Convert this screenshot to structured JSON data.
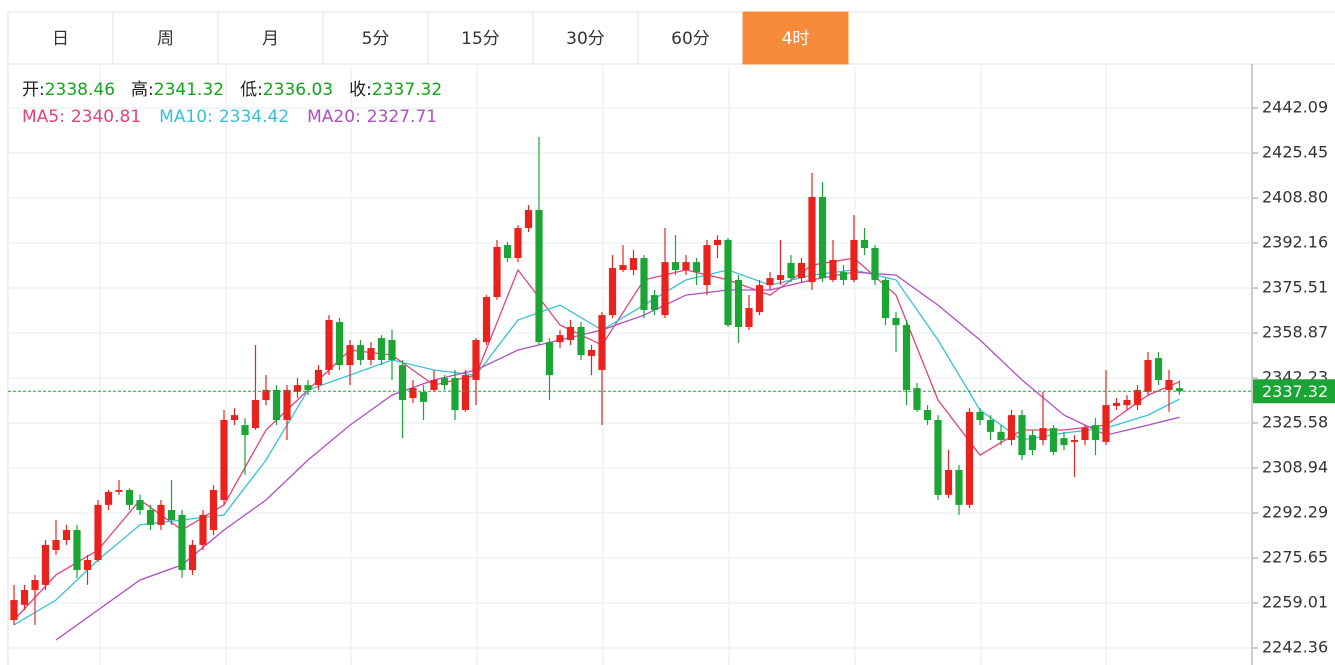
{
  "chart_data": {
    "type": "candlestick",
    "tabs": [
      "日",
      "周",
      "月",
      "5分",
      "15分",
      "30分",
      "60分",
      "4时"
    ],
    "active_tab": "4时",
    "ohlc_labels": [
      "开:",
      "高:",
      "低:",
      "收:"
    ],
    "up_color": "#e8231e",
    "down_color": "#1aa534",
    "ylim": [
      2236.07,
      2456.9
    ],
    "yticks": [
      2242.36,
      2259.01,
      2275.65,
      2292.29,
      2308.94,
      2325.58,
      2342.23,
      2358.87,
      2375.51,
      2392.16,
      {
        "value": 2408.8,
        "label": "2408.80"
      },
      2425.45,
      2442.09
    ],
    "grid": true,
    "ohlc": [
      [
        2252.7,
        2265.7,
        2250.9,
        2260.1
      ],
      [
        2258.3,
        2265.7,
        2256.4,
        2263.8
      ],
      [
        2263.8,
        2269.4,
        2250.9,
        2267.5
      ],
      [
        2265.7,
        2282.3,
        2263.8,
        2280.5
      ],
      [
        2278.6,
        2289.7,
        2276.8,
        2282.3
      ],
      [
        2282.3,
        2287.9,
        2280.5,
        2286.0
      ],
      [
        2286.0,
        2287.9,
        2268.3,
        2271.2
      ],
      [
        2271.2,
        2276.8,
        2265.7,
        2274.9
      ],
      [
        2274.9,
        2297.1,
        2274.2,
        2295.3
      ],
      [
        2295.3,
        2300.8,
        2293.4,
        2300.1
      ],
      [
        2300.1,
        2304.5,
        2299.0,
        2300.8
      ],
      [
        2300.8,
        2301.5,
        2293.4,
        2295.3
      ],
      [
        2297.1,
        2299.0,
        2291.6,
        2293.4
      ],
      [
        2293.4,
        2295.3,
        2286.0,
        2287.9
      ],
      [
        2287.9,
        2297.1,
        2286.0,
        2295.3
      ],
      [
        2293.4,
        2304.5,
        2287.9,
        2289.7
      ],
      [
        2291.6,
        2293.4,
        2268.3,
        2271.2
      ],
      [
        2271.2,
        2282.3,
        2269.4,
        2280.5
      ],
      [
        2280.5,
        2293.4,
        2278.6,
        2291.6
      ],
      [
        2286.0,
        2302.6,
        2284.1,
        2300.8
      ],
      [
        2297.1,
        2330.4,
        2295.3,
        2326.7
      ],
      [
        2326.7,
        2331.1,
        2324.8,
        2328.5
      ],
      [
        2324.8,
        2327.4,
        2306.4,
        2321.1
      ],
      [
        2323.7,
        2354.4,
        2323.0,
        2334.1
      ],
      [
        2334.1,
        2343.3,
        2332.2,
        2337.8
      ],
      [
        2337.8,
        2339.6,
        2324.8,
        2326.7
      ],
      [
        2326.7,
        2339.6,
        2319.3,
        2337.8
      ],
      [
        2337.1,
        2342.2,
        2334.8,
        2339.6
      ],
      [
        2339.6,
        2341.5,
        2335.9,
        2337.8
      ],
      [
        2339.6,
        2347.0,
        2337.8,
        2345.2
      ],
      [
        2345.2,
        2365.5,
        2343.3,
        2363.7
      ],
      [
        2362.9,
        2364.4,
        2345.2,
        2347.0
      ],
      [
        2347.0,
        2356.3,
        2339.6,
        2354.4
      ],
      [
        2354.4,
        2356.3,
        2347.0,
        2348.9
      ],
      [
        2348.9,
        2355.5,
        2347.0,
        2353.3
      ],
      [
        2357.0,
        2358.1,
        2347.0,
        2348.9
      ],
      [
        2356.3,
        2360.0,
        2341.5,
        2348.9
      ],
      [
        2347.0,
        2348.9,
        2320.0,
        2334.1
      ],
      [
        2334.8,
        2341.5,
        2333.0,
        2338.5
      ],
      [
        2337.1,
        2339.6,
        2326.7,
        2333.4
      ],
      [
        2337.8,
        2345.2,
        2337.1,
        2341.5
      ],
      [
        2342.2,
        2343.3,
        2337.8,
        2339.6
      ],
      [
        2342.2,
        2345.2,
        2326.7,
        2330.4
      ],
      [
        2330.4,
        2345.2,
        2329.7,
        2343.3
      ],
      [
        2341.5,
        2357.0,
        2332.2,
        2356.3
      ],
      [
        2355.5,
        2372.9,
        2354.4,
        2372.2
      ],
      [
        2372.2,
        2393.3,
        2371.1,
        2390.7
      ],
      [
        2391.4,
        2392.5,
        2385.1,
        2386.6
      ],
      [
        2386.6,
        2398.8,
        2385.1,
        2397.7
      ],
      [
        2397.7,
        2406.2,
        2396.2,
        2404.4
      ],
      [
        2404.4,
        2431.4,
        2354.4,
        2355.5
      ],
      [
        2355.5,
        2357.0,
        2334.1,
        2343.3
      ],
      [
        2355.5,
        2360.0,
        2353.3,
        2358.1
      ],
      [
        2356.3,
        2363.7,
        2354.4,
        2361.1
      ],
      [
        2361.1,
        2362.9,
        2348.9,
        2350.7
      ],
      [
        2350.4,
        2354.4,
        2343.3,
        2352.6
      ],
      [
        2345.2,
        2366.6,
        2324.8,
        2365.5
      ],
      [
        2365.5,
        2387.7,
        2364.4,
        2382.9
      ],
      [
        2382.2,
        2391.4,
        2381.4,
        2384.0
      ],
      [
        2382.2,
        2389.6,
        2380.3,
        2386.6
      ],
      [
        2386.6,
        2387.7,
        2364.4,
        2367.4
      ],
      [
        2372.9,
        2374.8,
        2365.5,
        2367.4
      ],
      [
        2365.5,
        2397.7,
        2364.4,
        2385.1
      ],
      [
        2385.1,
        2395.1,
        2380.3,
        2382.2
      ],
      [
        2382.2,
        2387.7,
        2380.3,
        2385.1
      ],
      [
        2385.1,
        2386.6,
        2376.6,
        2381.4
      ],
      [
        2376.6,
        2393.3,
        2372.9,
        2391.4
      ],
      [
        2391.4,
        2395.1,
        2386.6,
        2393.3
      ],
      [
        2393.3,
        2394.0,
        2361.1,
        2361.8
      ],
      [
        2378.5,
        2380.3,
        2355.2,
        2361.1
      ],
      [
        2361.1,
        2372.9,
        2360.0,
        2368.1
      ],
      [
        2366.6,
        2378.5,
        2365.5,
        2376.6
      ],
      [
        2376.6,
        2381.4,
        2374.8,
        2379.2
      ],
      [
        2378.5,
        2393.3,
        2376.6,
        2380.3
      ],
      [
        2384.8,
        2387.7,
        2377.7,
        2379.2
      ],
      [
        2379.2,
        2386.6,
        2377.7,
        2384.8
      ],
      [
        2377.7,
        2418.1,
        2374.8,
        2409.2
      ],
      [
        2409.2,
        2414.7,
        2377.7,
        2379.2
      ],
      [
        2378.5,
        2393.3,
        2377.7,
        2385.9
      ],
      [
        2381.4,
        2384.0,
        2376.6,
        2378.5
      ],
      [
        2378.5,
        2402.5,
        2377.7,
        2393.3
      ],
      [
        2393.3,
        2397.7,
        2387.7,
        2390.3
      ],
      [
        2390.3,
        2391.4,
        2376.6,
        2378.5
      ],
      [
        2378.5,
        2379.2,
        2361.8,
        2364.4
      ],
      [
        2364.4,
        2366.6,
        2351.8,
        2361.8
      ],
      [
        2361.8,
        2363.7,
        2332.2,
        2337.8
      ],
      [
        2338.5,
        2340.4,
        2329.7,
        2330.4
      ],
      [
        2330.4,
        2332.2,
        2324.8,
        2326.7
      ],
      [
        2326.7,
        2328.5,
        2297.1,
        2299.0
      ],
      [
        2299.0,
        2315.6,
        2297.8,
        2308.2
      ],
      [
        2308.2,
        2310.1,
        2291.6,
        2295.3
      ],
      [
        2295.3,
        2331.1,
        2294.1,
        2329.7
      ],
      [
        2329.7,
        2331.1,
        2324.8,
        2326.7
      ],
      [
        2326.7,
        2328.5,
        2319.3,
        2322.3
      ],
      [
        2322.3,
        2324.8,
        2317.4,
        2319.3
      ],
      [
        2319.3,
        2330.4,
        2317.4,
        2328.5
      ],
      [
        2328.5,
        2330.4,
        2311.9,
        2313.7
      ],
      [
        2321.1,
        2323.0,
        2313.7,
        2315.6
      ],
      [
        2319.3,
        2337.1,
        2317.4,
        2323.7
      ],
      [
        2323.7,
        2324.8,
        2313.7,
        2314.9
      ],
      [
        2320.0,
        2322.3,
        2315.6,
        2317.4
      ],
      [
        2318.6,
        2321.1,
        2305.6,
        2319.3
      ],
      [
        2319.3,
        2324.8,
        2317.4,
        2323.7
      ],
      [
        2324.8,
        2327.4,
        2313.7,
        2319.3
      ],
      [
        2318.6,
        2345.2,
        2317.4,
        2332.2
      ],
      [
        2331.9,
        2334.8,
        2330.4,
        2333.0
      ],
      [
        2332.2,
        2335.9,
        2330.4,
        2334.1
      ],
      [
        2332.2,
        2339.6,
        2330.4,
        2337.8
      ],
      [
        2337.1,
        2351.8,
        2335.9,
        2348.9
      ],
      [
        2349.6,
        2351.8,
        2339.6,
        2341.5
      ],
      [
        2337.8,
        2345.2,
        2329.7,
        2341.5
      ],
      [
        2338.46,
        2341.32,
        2336.03,
        2337.32
      ]
    ],
    "series": [
      {
        "name": "MA5:",
        "color": "#e6417a",
        "x": [
          0,
          4,
          8,
          12,
          16,
          20,
          24,
          28,
          32,
          36,
          40,
          44,
          48,
          52,
          56,
          60,
          64,
          68,
          72,
          76,
          80,
          84,
          88,
          92,
          96,
          100,
          104,
          108,
          111
        ],
        "values": [
          2252.7,
          2269.4,
          2278.6,
          2297.1,
          2286.0,
          2295.3,
          2323.0,
          2337.8,
          2352.6,
          2350.7,
          2339.6,
          2343.3,
          2382.2,
          2361.8,
          2354.4,
          2378.5,
          2382.2,
          2378.5,
          2372.9,
          2384.0,
          2386.6,
          2372.9,
          2334.1,
          2313.7,
          2323.0,
          2323.0,
          2324.8,
          2335.9,
          2340.81
        ]
      },
      {
        "name": "MA10:",
        "color": "#36c2d6",
        "x": [
          0,
          4,
          8,
          12,
          16,
          20,
          24,
          28,
          32,
          36,
          40,
          44,
          48,
          52,
          56,
          60,
          64,
          68,
          72,
          76,
          80,
          84,
          88,
          92,
          96,
          100,
          104,
          108,
          111
        ],
        "values": [
          2250.9,
          2260.1,
          2274.9,
          2287.9,
          2289.7,
          2291.6,
          2311.9,
          2337.8,
          2343.3,
          2348.9,
          2345.2,
          2343.3,
          2363.7,
          2369.2,
          2360.0,
          2369.2,
          2378.5,
          2382.2,
          2376.6,
          2380.3,
          2382.2,
          2378.5,
          2356.3,
          2330.4,
          2319.3,
          2321.9,
          2323.7,
          2328.5,
          2334.42
        ]
      },
      {
        "name": "MA20:",
        "color": "#b04ec4",
        "x": [
          0,
          4,
          8,
          12,
          16,
          20,
          24,
          28,
          32,
          36,
          40,
          44,
          48,
          52,
          56,
          60,
          64,
          68,
          72,
          76,
          80,
          84,
          88,
          92,
          96,
          100,
          104,
          108,
          111
        ],
        "values": [
          null,
          2245.3,
          2256.4,
          2267.5,
          2273.1,
          2286.0,
          2297.1,
          2311.9,
          2324.8,
          2335.9,
          2341.5,
          2345.2,
          2352.6,
          2356.3,
          2360.0,
          2365.5,
          2372.9,
          2374.8,
          2374.8,
          2378.5,
          2381.4,
          2380.3,
          2369.2,
          2356.3,
          2341.5,
          2328.5,
          2321.1,
          2324.8,
          2327.71
        ]
      }
    ]
  }
}
